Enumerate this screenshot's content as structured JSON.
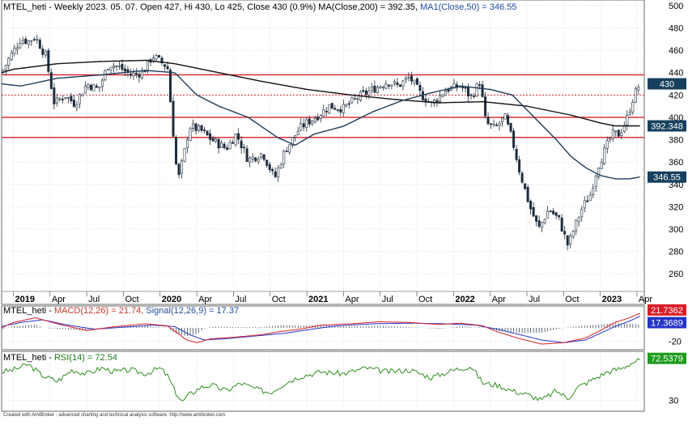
{
  "colors": {
    "grid": "#b8c7d6",
    "price_up": "#1f2d3d",
    "ma200": "#111111",
    "ma50": "#1f3c5a",
    "resistance": "#d81e28",
    "macd": "#d81e28",
    "signal": "#2433c8",
    "histogram": "#3a4a5a",
    "rsi": "#2f8f1f",
    "label_ma50_bg": "#17405e",
    "label_signal_bg": "#2433c8",
    "label_rsi_bg": "#1f9c1f",
    "label_macd_bg": "#d81e28"
  },
  "header": {
    "main_prefix": "MTEL_heti - Weekly 2023. 05. 07. Open 427, Hi 430, Lo 425, Close 430 (0.9%) MA(Close,200) = 392.35, ",
    "main_ma50": "MA1(Close,50) = 346.55",
    "macd_prefix": "MTEL_heti - ",
    "macd_main": "MACD(12,26) = 21.74, ",
    "macd_signal": "Signal(12,26,9) = 17.37",
    "rsi_prefix": "MTEL_heti - ",
    "rsi_main": "RSI(14) = 72.54"
  },
  "footer": "Created with AmiBroker - advanced charting and technical analysis software. http://www.amibroker.com",
  "chart_data": [
    {
      "type": "candlestick",
      "ylim": [
        250,
        505
      ],
      "y_ticks": [
        260,
        280,
        300,
        320,
        340,
        360,
        380,
        400,
        420,
        440,
        460,
        480,
        500
      ],
      "x_ticks": [
        {
          "label": "2019",
          "t": 0.0,
          "bold": true
        },
        {
          "label": "Apr",
          "t": 0.25
        },
        {
          "label": "Jul",
          "t": 0.5
        },
        {
          "label": "Oct",
          "t": 0.75
        },
        {
          "label": "2020",
          "t": 1.0,
          "bold": true
        },
        {
          "label": "Apr",
          "t": 1.25
        },
        {
          "label": "Jul",
          "t": 1.5
        },
        {
          "label": "Oct",
          "t": 1.75
        },
        {
          "label": "2021",
          "t": 2.0,
          "bold": true
        },
        {
          "label": "Apr",
          "t": 2.25
        },
        {
          "label": "Jul",
          "t": 2.5
        },
        {
          "label": "Oct",
          "t": 2.75
        },
        {
          "label": "2022",
          "t": 3.0,
          "bold": true
        },
        {
          "label": "Apr",
          "t": 3.25
        },
        {
          "label": "Jul",
          "t": 3.5
        },
        {
          "label": "Oct",
          "t": 3.75
        },
        {
          "label": "2023",
          "t": 4.0,
          "bold": true
        },
        {
          "label": "Apr",
          "t": 4.25
        }
      ],
      "horizontal_lines": [
        {
          "y": 438,
          "style": "solid"
        },
        {
          "y": 420,
          "style": "dotted"
        },
        {
          "y": 400,
          "style": "solid"
        },
        {
          "y": 382,
          "style": "solid"
        }
      ],
      "price_anchors": [
        [
          -0.08,
          440
        ],
        [
          -0.02,
          455
        ],
        [
          0.05,
          470
        ],
        [
          0.1,
          468
        ],
        [
          0.15,
          472
        ],
        [
          0.22,
          455
        ],
        [
          0.28,
          412
        ],
        [
          0.35,
          420
        ],
        [
          0.42,
          412
        ],
        [
          0.5,
          430
        ],
        [
          0.58,
          425
        ],
        [
          0.65,
          448
        ],
        [
          0.72,
          445
        ],
        [
          0.8,
          438
        ],
        [
          0.88,
          440
        ],
        [
          0.95,
          455
        ],
        [
          1.0,
          450
        ],
        [
          1.05,
          445
        ],
        [
          1.08,
          400
        ],
        [
          1.12,
          342
        ],
        [
          1.16,
          365
        ],
        [
          1.2,
          392
        ],
        [
          1.28,
          388
        ],
        [
          1.35,
          380
        ],
        [
          1.45,
          372
        ],
        [
          1.52,
          385
        ],
        [
          1.6,
          362
        ],
        [
          1.7,
          368
        ],
        [
          1.78,
          345
        ],
        [
          1.85,
          370
        ],
        [
          1.95,
          390
        ],
        [
          2.0,
          395
        ],
        [
          2.08,
          402
        ],
        [
          2.15,
          410
        ],
        [
          2.25,
          408
        ],
        [
          2.35,
          418
        ],
        [
          2.45,
          425
        ],
        [
          2.55,
          432
        ],
        [
          2.62,
          428
        ],
        [
          2.7,
          436
        ],
        [
          2.78,
          420
        ],
        [
          2.85,
          412
        ],
        [
          2.95,
          425
        ],
        [
          3.05,
          428
        ],
        [
          3.12,
          418
        ],
        [
          3.18,
          432
        ],
        [
          3.22,
          395
        ],
        [
          3.28,
          390
        ],
        [
          3.35,
          400
        ],
        [
          3.4,
          380
        ],
        [
          3.45,
          352
        ],
        [
          3.52,
          320
        ],
        [
          3.58,
          300
        ],
        [
          3.65,
          318
        ],
        [
          3.72,
          308
        ],
        [
          3.78,
          285
        ],
        [
          3.82,
          300
        ],
        [
          3.88,
          320
        ],
        [
          3.93,
          330
        ],
        [
          3.98,
          355
        ],
        [
          4.03,
          370
        ],
        [
          4.08,
          385
        ],
        [
          4.13,
          385
        ],
        [
          4.18,
          398
        ],
        [
          4.23,
          420
        ],
        [
          4.27,
          430
        ]
      ],
      "ma200_anchors": [
        [
          -0.08,
          440
        ],
        [
          0.0,
          443
        ],
        [
          0.3,
          448
        ],
        [
          0.6,
          450
        ],
        [
          0.9,
          451
        ],
        [
          1.1,
          448
        ],
        [
          1.4,
          440
        ],
        [
          1.7,
          432
        ],
        [
          2.0,
          425
        ],
        [
          2.3,
          420
        ],
        [
          2.6,
          416
        ],
        [
          2.9,
          413
        ],
        [
          3.2,
          414
        ],
        [
          3.5,
          410
        ],
        [
          3.8,
          402
        ],
        [
          4.0,
          395
        ],
        [
          4.1,
          392.35
        ],
        [
          4.27,
          392.35
        ]
      ],
      "ma50_anchors": [
        [
          -0.08,
          430
        ],
        [
          0.05,
          428
        ],
        [
          0.3,
          435
        ],
        [
          0.6,
          438
        ],
        [
          0.9,
          442
        ],
        [
          1.1,
          440
        ],
        [
          1.25,
          420
        ],
        [
          1.4,
          410
        ],
        [
          1.6,
          400
        ],
        [
          1.8,
          382
        ],
        [
          1.92,
          375
        ],
        [
          2.05,
          385
        ],
        [
          2.25,
          392
        ],
        [
          2.45,
          405
        ],
        [
          2.65,
          415
        ],
        [
          2.85,
          422
        ],
        [
          3.05,
          428
        ],
        [
          3.25,
          425
        ],
        [
          3.4,
          420
        ],
        [
          3.55,
          400
        ],
        [
          3.7,
          380
        ],
        [
          3.8,
          365
        ],
        [
          3.9,
          355
        ],
        [
          4.0,
          348
        ],
        [
          4.1,
          345
        ],
        [
          4.2,
          345
        ],
        [
          4.27,
          346.55
        ]
      ],
      "value_labels": [
        {
          "text": "430",
          "y": 430,
          "bg": "#17405e"
        },
        {
          "text": "392.348",
          "y": 392.35,
          "bg": "#17405e"
        },
        {
          "text": "346.55",
          "y": 346.55,
          "bg": "#17405e"
        }
      ]
    },
    {
      "type": "line",
      "name_macd": "MACD(12,26)",
      "name_signal": "Signal(12,26,9)",
      "ylim": [
        -30,
        30
      ],
      "y_ticks": [
        -20
      ],
      "macd_anchors": [
        [
          -0.08,
          0
        ],
        [
          0.0,
          8
        ],
        [
          0.15,
          15
        ],
        [
          0.3,
          6
        ],
        [
          0.5,
          -4
        ],
        [
          0.7,
          2
        ],
        [
          0.9,
          6
        ],
        [
          1.05,
          3
        ],
        [
          1.12,
          -8
        ],
        [
          1.18,
          -18
        ],
        [
          1.25,
          -22
        ],
        [
          1.35,
          -16
        ],
        [
          1.5,
          -14
        ],
        [
          1.7,
          -10
        ],
        [
          1.8,
          -6
        ],
        [
          1.95,
          -2
        ],
        [
          2.1,
          4
        ],
        [
          2.3,
          6
        ],
        [
          2.5,
          9
        ],
        [
          2.7,
          8
        ],
        [
          2.9,
          5
        ],
        [
          3.05,
          7
        ],
        [
          3.2,
          3
        ],
        [
          3.3,
          -6
        ],
        [
          3.45,
          -16
        ],
        [
          3.6,
          -24
        ],
        [
          3.75,
          -22
        ],
        [
          3.9,
          -15
        ],
        [
          4.0,
          -4
        ],
        [
          4.1,
          8
        ],
        [
          4.2,
          15
        ],
        [
          4.27,
          21.74
        ]
      ],
      "signal_anchors": [
        [
          -0.08,
          2
        ],
        [
          0.05,
          8
        ],
        [
          0.2,
          12
        ],
        [
          0.35,
          5
        ],
        [
          0.55,
          -2
        ],
        [
          0.75,
          1
        ],
        [
          0.95,
          4
        ],
        [
          1.1,
          2
        ],
        [
          1.2,
          -10
        ],
        [
          1.3,
          -18
        ],
        [
          1.45,
          -16
        ],
        [
          1.65,
          -12
        ],
        [
          1.85,
          -8
        ],
        [
          2.0,
          -3
        ],
        [
          2.2,
          3
        ],
        [
          2.45,
          6
        ],
        [
          2.7,
          7
        ],
        [
          2.95,
          6
        ],
        [
          3.15,
          4
        ],
        [
          3.3,
          -2
        ],
        [
          3.45,
          -10
        ],
        [
          3.6,
          -18
        ],
        [
          3.75,
          -22
        ],
        [
          3.9,
          -18
        ],
        [
          4.0,
          -8
        ],
        [
          4.1,
          2
        ],
        [
          4.2,
          10
        ],
        [
          4.27,
          17.37
        ]
      ],
      "value_labels": [
        {
          "text": "21.7362",
          "y": 21.74,
          "bg": "#d81e28"
        },
        {
          "text": "17.3689",
          "y": 17.37,
          "bg": "#2433c8"
        }
      ]
    },
    {
      "type": "line",
      "name": "RSI(14)",
      "ylim": [
        20,
        80
      ],
      "y_ticks": [
        30
      ],
      "rsi_anchors": [
        [
          -0.08,
          60
        ],
        [
          0.0,
          62
        ],
        [
          0.1,
          68
        ],
        [
          0.2,
          56
        ],
        [
          0.3,
          50
        ],
        [
          0.4,
          62
        ],
        [
          0.5,
          58
        ],
        [
          0.6,
          64
        ],
        [
          0.7,
          60
        ],
        [
          0.8,
          62
        ],
        [
          0.9,
          58
        ],
        [
          1.0,
          64
        ],
        [
          1.05,
          56
        ],
        [
          1.1,
          40
        ],
        [
          1.15,
          28
        ],
        [
          1.2,
          36
        ],
        [
          1.28,
          44
        ],
        [
          1.35,
          46
        ],
        [
          1.45,
          40
        ],
        [
          1.55,
          48
        ],
        [
          1.65,
          42
        ],
        [
          1.75,
          38
        ],
        [
          1.85,
          48
        ],
        [
          1.95,
          55
        ],
        [
          2.1,
          60
        ],
        [
          2.25,
          58
        ],
        [
          2.4,
          64
        ],
        [
          2.55,
          60
        ],
        [
          2.7,
          62
        ],
        [
          2.85,
          54
        ],
        [
          3.0,
          62
        ],
        [
          3.12,
          66
        ],
        [
          3.2,
          48
        ],
        [
          3.3,
          46
        ],
        [
          3.4,
          40
        ],
        [
          3.5,
          36
        ],
        [
          3.6,
          30
        ],
        [
          3.7,
          40
        ],
        [
          3.78,
          32
        ],
        [
          3.85,
          44
        ],
        [
          3.95,
          52
        ],
        [
          4.05,
          60
        ],
        [
          4.15,
          64
        ],
        [
          4.22,
          70
        ],
        [
          4.27,
          72.54
        ]
      ],
      "value_labels": [
        {
          "text": "72.5379",
          "y": 72.54,
          "bg": "#1f9c1f"
        }
      ]
    }
  ]
}
